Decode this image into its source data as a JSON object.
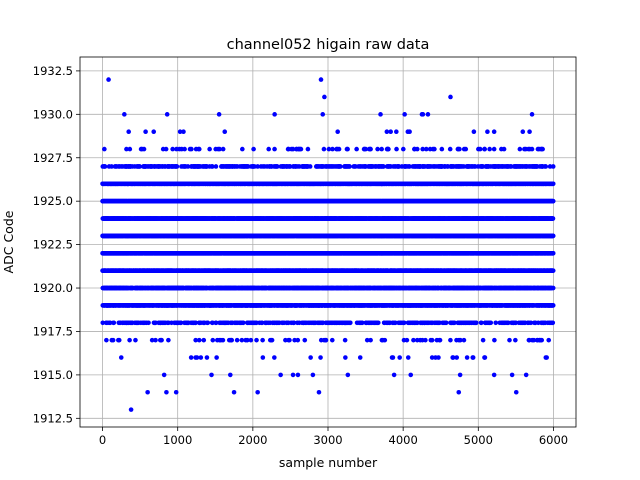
{
  "chart_data": {
    "type": "scatter",
    "title": "channel052 higain raw data",
    "xlabel": "sample number",
    "ylabel": "ADC Code",
    "xlim": [
      -300,
      6300
    ],
    "ylim": [
      1912,
      1933.3
    ],
    "x_ticks": [
      0,
      1000,
      2000,
      3000,
      4000,
      5000,
      6000
    ],
    "x_tick_labels": [
      "0",
      "1000",
      "2000",
      "3000",
      "4000",
      "5000",
      "6000"
    ],
    "y_ticks": [
      1912.5,
      1915.0,
      1917.5,
      1920.0,
      1922.5,
      1925.0,
      1927.5,
      1930.0,
      1932.5
    ],
    "y_tick_labels": [
      "1912.5",
      "1915.0",
      "1917.5",
      "1920.0",
      "1922.5",
      "1925.0",
      "1927.5",
      "1930.0",
      "1932.5"
    ],
    "grid": true,
    "marker_color": "#0000ff",
    "sample_count": 6000,
    "level_density": [
      {
        "level": 1913,
        "density": 0.0002
      },
      {
        "level": 1914,
        "density": 0.0008
      },
      {
        "level": 1915,
        "density": 0.001
      },
      {
        "level": 1916,
        "density": 0.004
      },
      {
        "level": 1917,
        "density": 0.012
      },
      {
        "level": 1918,
        "density": 0.06
      },
      {
        "level": 1919,
        "density": 0.2
      },
      {
        "level": 1920,
        "density": 0.55
      },
      {
        "level": 1921,
        "density": 0.7
      },
      {
        "level": 1922,
        "density": 0.85
      },
      {
        "level": 1923,
        "density": 0.85
      },
      {
        "level": 1924,
        "density": 0.7
      },
      {
        "level": 1925,
        "density": 0.45
      },
      {
        "level": 1926,
        "density": 0.25
      },
      {
        "level": 1927,
        "density": 0.07
      },
      {
        "level": 1928,
        "density": 0.012
      },
      {
        "level": 1929,
        "density": 0.004
      },
      {
        "level": 1930,
        "density": 0.0012
      },
      {
        "level": 1931,
        "density": 0.0002
      },
      {
        "level": 1932,
        "density": 0.0002
      }
    ],
    "outliers": [
      {
        "x": 80,
        "y": 1932
      },
      {
        "x": 4630,
        "y": 1931
      },
      {
        "x": 290,
        "y": 1930
      },
      {
        "x": 860,
        "y": 1930
      },
      {
        "x": 2290,
        "y": 1930
      },
      {
        "x": 2930,
        "y": 1930
      },
      {
        "x": 4020,
        "y": 1930
      },
      {
        "x": 4250,
        "y": 1930
      },
      {
        "x": 4330,
        "y": 1930
      },
      {
        "x": 380,
        "y": 1913
      },
      {
        "x": 600,
        "y": 1914
      },
      {
        "x": 850,
        "y": 1914
      },
      {
        "x": 980,
        "y": 1914
      },
      {
        "x": 1750,
        "y": 1914
      },
      {
        "x": 2880,
        "y": 1914
      },
      {
        "x": 4740,
        "y": 1914
      },
      {
        "x": 820,
        "y": 1915
      },
      {
        "x": 1450,
        "y": 1915
      },
      {
        "x": 1700,
        "y": 1915
      },
      {
        "x": 2370,
        "y": 1915
      },
      {
        "x": 2600,
        "y": 1915
      },
      {
        "x": 3880,
        "y": 1915
      },
      {
        "x": 5450,
        "y": 1915
      }
    ]
  }
}
